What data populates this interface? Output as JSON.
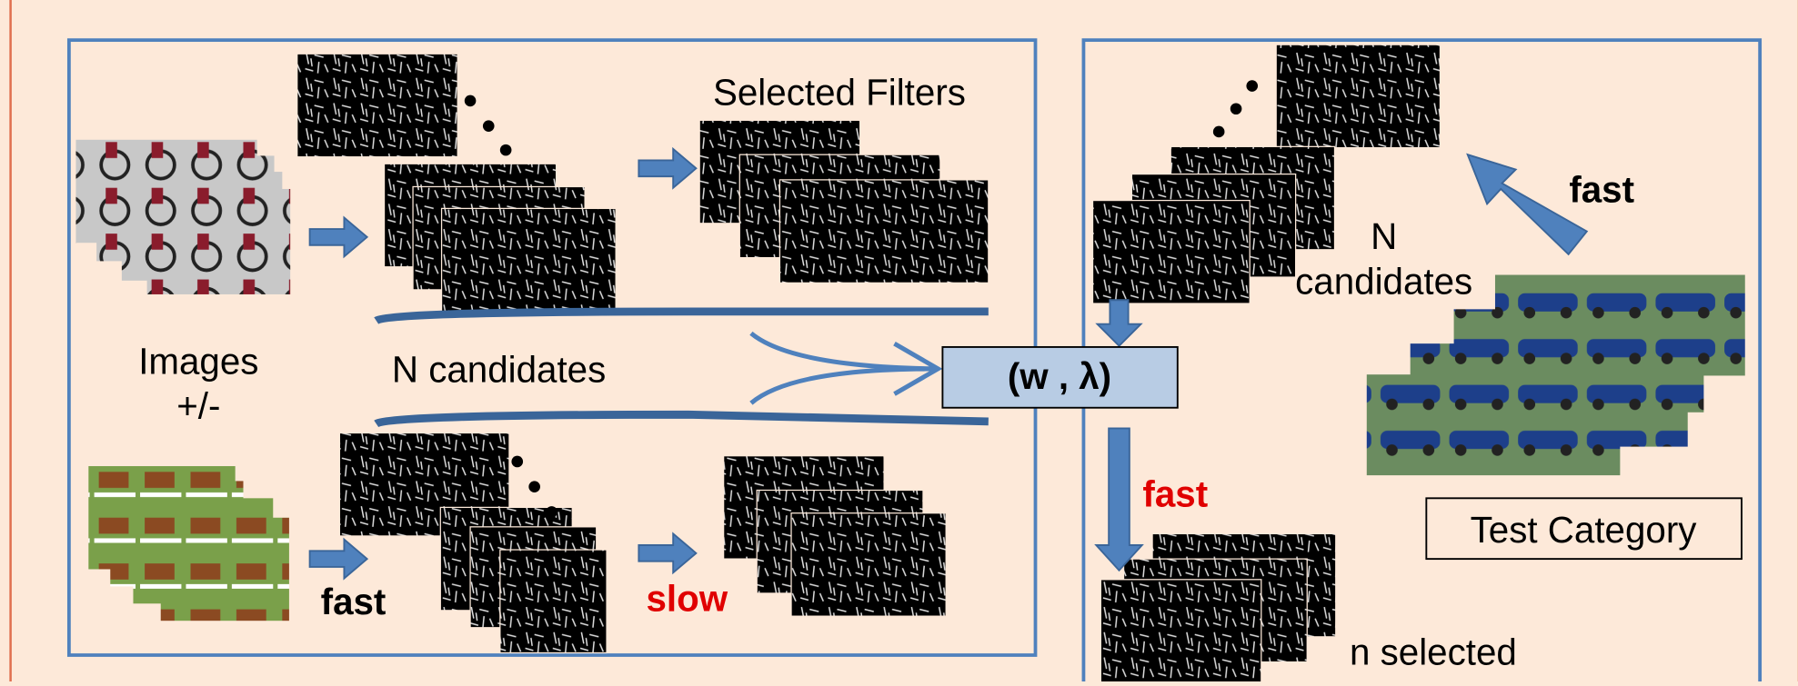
{
  "labels": {
    "selected_filters": "Selected Filters",
    "images": [
      "Images",
      "+/-"
    ],
    "n_candidates_left": "N candidates",
    "fast_left": "fast",
    "slow": "slow",
    "model": "(w , λ)",
    "fast_top_right": "fast",
    "n_candidates_right": [
      "N",
      "candidates"
    ],
    "fast_down": "fast",
    "test_category": "Test Category",
    "n_selected": "n selected"
  }
}
